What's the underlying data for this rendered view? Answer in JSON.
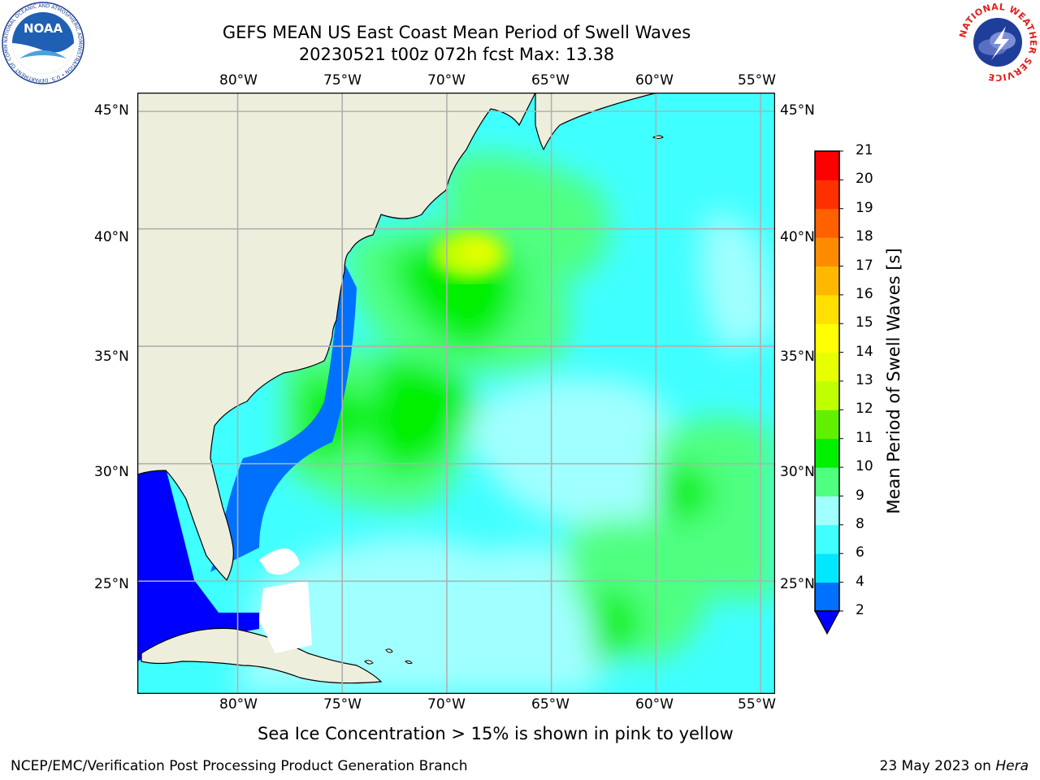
{
  "title": {
    "line1": "GEFS MEAN US East Coast Mean Period of Swell Waves",
    "line2": "20230521 t00z 072h fcst   Max: 13.38"
  },
  "map": {
    "lon_labels": [
      "80°W",
      "75°W",
      "70°W",
      "65°W",
      "60°W",
      "55°W"
    ],
    "lat_labels": [
      "45°N",
      "40°N",
      "35°N",
      "30°N",
      "25°N"
    ],
    "extent": {
      "lon": [
        -84.8,
        -54.3
      ],
      "lat": [
        20.2,
        45.8
      ]
    },
    "grid": true,
    "land_color": "#eeeedd",
    "ice_note": "Sea Ice Concentration > 15% is shown in pink to yellow"
  },
  "colorbar": {
    "label": "Mean Period of Swell Waves [s]",
    "ticks": [
      "2",
      "4",
      "6",
      "8",
      "9",
      "10",
      "11",
      "12",
      "13",
      "14",
      "15",
      "16",
      "17",
      "18",
      "19",
      "20",
      "21"
    ],
    "colors": [
      "#0070ff",
      "#00e8ff",
      "#40ffff",
      "#a0ffff",
      "#50ff80",
      "#00f000",
      "#60f000",
      "#c0ff00",
      "#e8ff00",
      "#ffff00",
      "#ffe000",
      "#ffb800",
      "#ff8c00",
      "#ff6000",
      "#ff3000",
      "#ff0000"
    ],
    "under_color": "#0000ff"
  },
  "footer": {
    "left": "NCEP/EMC/Verification Post Processing Product Generation Branch",
    "right_date": "23 May 2023 on ",
    "right_host": "Hera"
  },
  "logos": {
    "noaa_text": "NOAA",
    "noaa_ring": "NATIONAL OCEANIC AND ATMOSPHERIC ADMINISTRATION • U.S. DEPARTMENT OF COMMERCE •",
    "nws_ring": "NATIONAL WEATHER SERVICE"
  }
}
